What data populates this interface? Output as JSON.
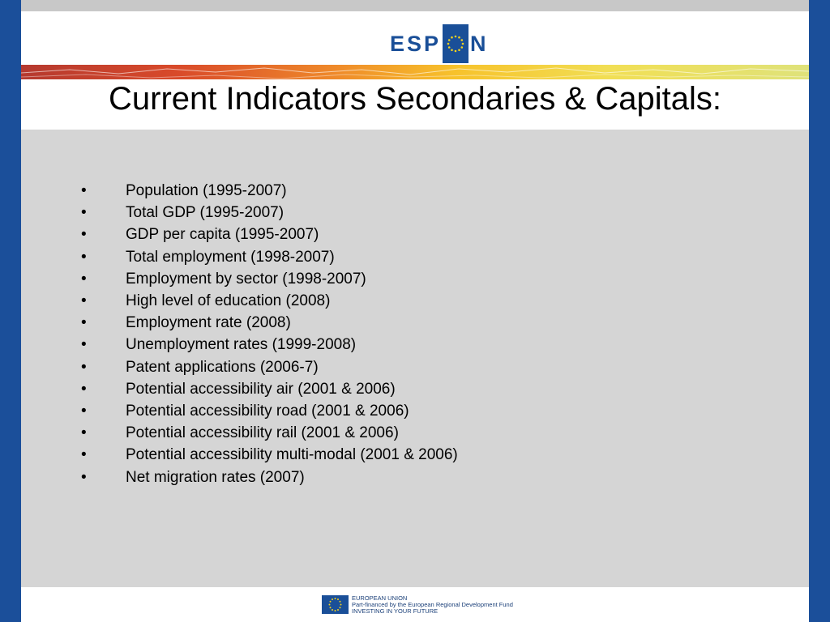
{
  "header": {
    "logo_left": "ESP",
    "logo_right": "N"
  },
  "slide": {
    "title": "Current Indicators Secondaries & Capitals:",
    "bullet_char": "•",
    "items": [
      "Population (1995-2007)",
      "Total GDP (1995-2007)",
      "GDP per capita (1995-2007)",
      "Total employment (1998-2007)",
      "Employment by sector (1998-2007)",
      "High level of education (2008)",
      "Employment rate (2008)",
      "Unemployment rates (1999-2008)",
      "Patent applications (2006-7)",
      "Potential accessibility air (2001 & 2006)",
      "Potential accessibility road (2001 & 2006)",
      "Potential accessibility rail (2001 & 2006)",
      "Potential accessibility multi-modal (2001 & 2006)",
      "Net migration rates (2007)"
    ]
  },
  "footer": {
    "line1": "EUROPEAN UNION",
    "line2": "Part-financed by the European Regional Development Fund",
    "line3": "INVESTING IN YOUR FUTURE"
  },
  "colors": {
    "frame_blue": "#1b4f9a",
    "background_gray": "#d5d5d5",
    "logo_blue": "#1a4f98",
    "eu_star_yellow": "#f3d21f"
  }
}
